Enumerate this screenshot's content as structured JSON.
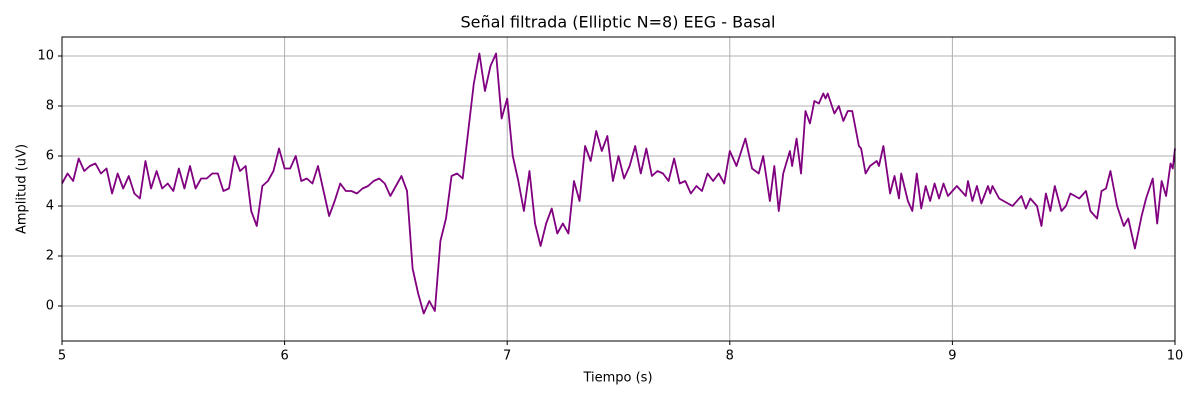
{
  "chart_data": {
    "type": "line",
    "title": "Señal filtrada (Elliptic N=8) EEG - Basal",
    "x_label": "Tiempo (s)",
    "y_label": "Amplitud (uV)",
    "color": "#800080",
    "grid": true,
    "xlim": [
      5,
      10
    ],
    "ylim": [
      -1.4,
      10.76
    ],
    "xticks": [
      5,
      6,
      7,
      8,
      9,
      10
    ],
    "yticks": [
      0,
      2,
      4,
      6,
      8,
      10
    ],
    "x": [
      5.0,
      5.025,
      5.05,
      5.075,
      5.1,
      5.125,
      5.15,
      5.175,
      5.2,
      5.225,
      5.25,
      5.275,
      5.3,
      5.325,
      5.35,
      5.375,
      5.4,
      5.425,
      5.45,
      5.475,
      5.5,
      5.525,
      5.55,
      5.575,
      5.6,
      5.625,
      5.65,
      5.675,
      5.7,
      5.725,
      5.75,
      5.775,
      5.8,
      5.825,
      5.85,
      5.875,
      5.9,
      5.925,
      5.95,
      5.975,
      6.0,
      6.025,
      6.05,
      6.075,
      6.1,
      6.125,
      6.15,
      6.175,
      6.2,
      6.225,
      6.25,
      6.275,
      6.3,
      6.325,
      6.35,
      6.375,
      6.4,
      6.425,
      6.45,
      6.475,
      6.5,
      6.525,
      6.55,
      6.575,
      6.6,
      6.625,
      6.65,
      6.675,
      6.7,
      6.725,
      6.75,
      6.775,
      6.8,
      6.825,
      6.85,
      6.875,
      6.9,
      6.925,
      6.95,
      6.975,
      7.0,
      7.025,
      7.05,
      7.075,
      7.1,
      7.125,
      7.15,
      7.175,
      7.2,
      7.225,
      7.25,
      7.275,
      7.3,
      7.325,
      7.35,
      7.375,
      7.4,
      7.425,
      7.45,
      7.475,
      7.5,
      7.525,
      7.55,
      7.575,
      7.6,
      7.625,
      7.65,
      7.675,
      7.7,
      7.725,
      7.75,
      7.775,
      7.8,
      7.825,
      7.85,
      7.875,
      7.9,
      7.925,
      7.95,
      7.975,
      8.0,
      8.03,
      8.07,
      8.1,
      8.13,
      8.15,
      8.18,
      8.2,
      8.22,
      8.24,
      8.27,
      8.28,
      8.3,
      8.32,
      8.34,
      8.36,
      8.38,
      8.4,
      8.42,
      8.43,
      8.44,
      8.47,
      8.49,
      8.51,
      8.53,
      8.55,
      8.58,
      8.59,
      8.61,
      8.63,
      8.66,
      8.67,
      8.69,
      8.72,
      8.74,
      8.76,
      8.77,
      8.8,
      8.82,
      8.84,
      8.86,
      8.88,
      8.9,
      8.92,
      8.94,
      8.96,
      8.98,
      9.02,
      9.04,
      9.06,
      9.07,
      9.09,
      9.11,
      9.13,
      9.16,
      9.17,
      9.18,
      9.21,
      9.27,
      9.31,
      9.33,
      9.35,
      9.38,
      9.4,
      9.42,
      9.44,
      9.46,
      9.49,
      9.51,
      9.53,
      9.57,
      9.6,
      9.62,
      9.65,
      9.67,
      9.69,
      9.71,
      9.74,
      9.77,
      9.79,
      9.82,
      9.85,
      9.87,
      9.9,
      9.92,
      9.94,
      9.96,
      9.98,
      9.99,
      10.0
    ],
    "values": [
      4.9,
      5.3,
      5.0,
      5.9,
      5.4,
      5.6,
      5.7,
      5.3,
      5.5,
      4.5,
      5.3,
      4.7,
      5.2,
      4.5,
      4.3,
      5.8,
      4.7,
      5.4,
      4.7,
      4.9,
      4.6,
      5.5,
      4.7,
      5.6,
      4.7,
      5.1,
      5.1,
      5.3,
      5.3,
      4.6,
      4.7,
      6.0,
      5.4,
      5.6,
      3.8,
      3.2,
      4.8,
      5.0,
      5.4,
      6.3,
      5.5,
      5.5,
      6.0,
      5.0,
      5.1,
      4.9,
      5.6,
      4.6,
      3.6,
      4.2,
      4.9,
      4.6,
      4.6,
      4.5,
      4.7,
      4.8,
      5.0,
      5.1,
      4.9,
      4.4,
      4.8,
      5.2,
      4.6,
      1.5,
      0.5,
      -0.3,
      0.2,
      -0.2,
      2.6,
      3.5,
      5.2,
      5.3,
      5.1,
      7.0,
      8.9,
      10.1,
      8.6,
      9.6,
      10.1,
      7.5,
      8.3,
      6.0,
      5.0,
      3.8,
      5.4,
      3.3,
      2.4,
      3.3,
      3.9,
      2.9,
      3.3,
      2.9,
      5.0,
      4.2,
      6.4,
      5.8,
      7.0,
      6.2,
      6.8,
      5.0,
      6.0,
      5.1,
      5.6,
      6.4,
      5.3,
      6.3,
      5.2,
      5.4,
      5.3,
      5.0,
      5.9,
      4.9,
      5.0,
      4.5,
      4.8,
      4.6,
      5.3,
      5.0,
      5.3,
      4.9,
      6.2,
      5.6,
      6.7,
      5.5,
      5.3,
      6.0,
      4.2,
      5.6,
      3.8,
      5.3,
      6.2,
      5.6,
      6.7,
      5.3,
      7.8,
      7.3,
      8.2,
      8.1,
      8.5,
      8.3,
      8.5,
      7.7,
      8.0,
      7.4,
      7.8,
      7.8,
      6.4,
      6.3,
      5.3,
      5.6,
      5.8,
      5.6,
      6.4,
      4.5,
      5.2,
      4.3,
      5.3,
      4.2,
      3.8,
      5.3,
      3.9,
      4.8,
      4.2,
      4.9,
      4.3,
      4.9,
      4.4,
      4.8,
      4.6,
      4.4,
      5.0,
      4.2,
      4.8,
      4.1,
      4.8,
      4.5,
      4.8,
      4.3,
      4.0,
      4.4,
      3.9,
      4.3,
      4.0,
      3.2,
      4.5,
      3.8,
      4.8,
      3.8,
      4.0,
      4.5,
      4.3,
      4.6,
      3.8,
      3.5,
      4.6,
      4.7,
      5.4,
      4.0,
      3.2,
      3.5,
      2.3,
      3.6,
      4.3,
      5.1,
      3.3,
      5.0,
      4.4,
      5.7,
      5.5,
      6.3
    ]
  }
}
